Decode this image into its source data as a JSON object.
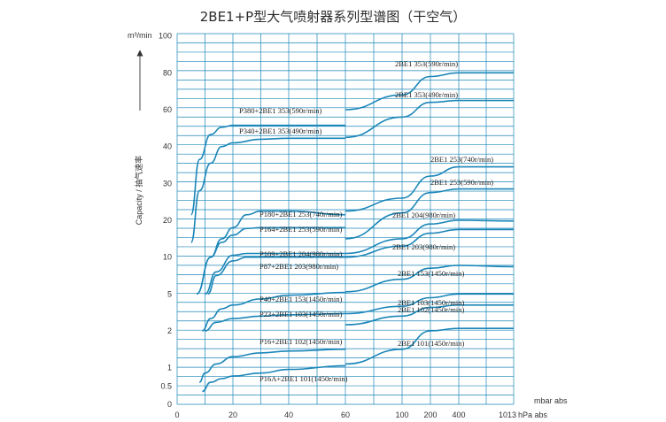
{
  "chart_data": {
    "type": "line",
    "title": "2BE1+P型大气喷射器系列型谱图（干空气）",
    "ylabel": "Capacity / 抽气速率",
    "yunit": "m³/min",
    "xunit_top": "mbar abs",
    "xunit_bottom": "hPa abs",
    "x_ticks": [
      "0",
      "20",
      "40",
      "60",
      "100",
      "200",
      "400",
      "1013"
    ],
    "y_ticks": [
      "0",
      "0.5",
      "1",
      "2",
      "5",
      "10",
      "20",
      "30",
      "40",
      "60",
      "80",
      "100"
    ],
    "grid": true,
    "series_color": "#1b86b8",
    "series": [
      {
        "name": "P380+2BE1 353(590r/min)",
        "points": [
          [
            5,
            21.5
          ],
          [
            8,
            36.5
          ],
          [
            12,
            46.5
          ],
          [
            16,
            50.5
          ],
          [
            20,
            51.5
          ],
          [
            30,
            51.5
          ],
          [
            40,
            51.5
          ],
          [
            60,
            51.5
          ]
        ]
      },
      {
        "name": "P340+2BE1 353(490r/min)",
        "points": [
          [
            5,
            14
          ],
          [
            8,
            28
          ],
          [
            12,
            35.5
          ],
          [
            16,
            40
          ],
          [
            20,
            42
          ],
          [
            30,
            44
          ],
          [
            40,
            44.5
          ],
          [
            60,
            44.5
          ]
        ]
      },
      {
        "name": "2BE1 353(590r/min)",
        "points": [
          [
            60,
            60
          ],
          [
            100,
            68
          ],
          [
            200,
            78
          ],
          [
            400,
            80
          ],
          [
            1013,
            80
          ]
        ]
      },
      {
        "name": "2BE1 353(490r/min)",
        "points": [
          [
            60,
            45
          ],
          [
            100,
            56
          ],
          [
            200,
            64
          ],
          [
            400,
            65
          ],
          [
            1013,
            65
          ]
        ]
      },
      {
        "name": "P180+2BE1 253(740r/min)",
        "points": [
          [
            7,
            5
          ],
          [
            12,
            10
          ],
          [
            16,
            15
          ],
          [
            20,
            18
          ],
          [
            25,
            21.5
          ],
          [
            30,
            22.5
          ],
          [
            40,
            22.5
          ],
          [
            60,
            21.5
          ]
        ]
      },
      {
        "name": "P164+2BE1 253(590r/min)",
        "points": [
          [
            7,
            5
          ],
          [
            12,
            10
          ],
          [
            16,
            14
          ],
          [
            20,
            16
          ],
          [
            25,
            17.8
          ],
          [
            30,
            18
          ],
          [
            40,
            18
          ],
          [
            60,
            18
          ]
        ]
      },
      {
        "name": "2BE1 253(740r/min)",
        "points": [
          [
            60,
            22.5
          ],
          [
            100,
            26
          ],
          [
            200,
            32
          ],
          [
            400,
            34.5
          ],
          [
            1013,
            34.5
          ]
        ]
      },
      {
        "name": "2BE1 253(590r/min)",
        "points": [
          [
            60,
            15
          ],
          [
            100,
            22
          ],
          [
            200,
            27.5
          ],
          [
            400,
            28.5
          ],
          [
            1013,
            28.5
          ]
        ]
      },
      {
        "name": "P109+2BE1 204(980r/min)",
        "points": [
          [
            10,
            5
          ],
          [
            14,
            8
          ],
          [
            20,
            10.5
          ],
          [
            25,
            11
          ],
          [
            40,
            11
          ],
          [
            60,
            11
          ]
        ]
      },
      {
        "name": "P87+2BE1 203(980r/min)",
        "points": [
          [
            11,
            5
          ],
          [
            14,
            7.5
          ],
          [
            20,
            9.5
          ],
          [
            25,
            10
          ],
          [
            40,
            10
          ],
          [
            60,
            10
          ]
        ]
      },
      {
        "name": "2BE1 204(980r/min)",
        "points": [
          [
            60,
            11
          ],
          [
            100,
            15
          ],
          [
            200,
            19
          ],
          [
            400,
            20
          ],
          [
            1013,
            19.8
          ]
        ]
      },
      {
        "name": "2BE1 203(980r/min)",
        "points": [
          [
            60,
            10
          ],
          [
            100,
            13
          ],
          [
            200,
            16.5
          ],
          [
            400,
            17.5
          ],
          [
            1013,
            17.5
          ]
        ]
      },
      {
        "name": "2BE1 153(1450r/min)",
        "points": [
          [
            60,
            5.3
          ],
          [
            100,
            7
          ],
          [
            200,
            8.5
          ],
          [
            400,
            8.9
          ],
          [
            1013,
            8.7
          ]
        ]
      },
      {
        "name": "P40+2BE1 153(1450r/min)",
        "points": [
          [
            9,
            2
          ],
          [
            12,
            3
          ],
          [
            16,
            3.8
          ],
          [
            20,
            4.1
          ],
          [
            30,
            4.6
          ],
          [
            40,
            4.9
          ],
          [
            60,
            5.2
          ]
        ]
      },
      {
        "name": "P23+2BE1 103(1450r/min)",
        "points": [
          [
            10,
            2
          ],
          [
            14,
            2.7
          ],
          [
            20,
            3
          ],
          [
            30,
            3.2
          ],
          [
            40,
            3.3
          ],
          [
            60,
            3.4
          ]
        ]
      },
      {
        "name": "2BE1 103(1450r/min)",
        "points": [
          [
            60,
            3.4
          ],
          [
            100,
            4
          ],
          [
            200,
            4.7
          ],
          [
            400,
            5
          ],
          [
            1013,
            5
          ]
        ]
      },
      {
        "name": "2BE1 102(1450r/min)",
        "points": [
          [
            60,
            2.5
          ],
          [
            100,
            3.2
          ],
          [
            200,
            3.9
          ],
          [
            400,
            4.1
          ],
          [
            1013,
            4.1
          ]
        ]
      },
      {
        "name": "P16+2BE1 102(1450r/min)",
        "points": [
          [
            8,
            0.6
          ],
          [
            10,
            0.85
          ],
          [
            14,
            1.1
          ],
          [
            20,
            1.3
          ],
          [
            30,
            1.4
          ],
          [
            40,
            1.45
          ],
          [
            60,
            1.5
          ]
        ]
      },
      {
        "name": "2BE1 101(1450r/min)",
        "points": [
          [
            60,
            1.1
          ],
          [
            100,
            1.5
          ],
          [
            200,
            2
          ],
          [
            400,
            2.2
          ],
          [
            1013,
            2.2
          ]
        ]
      },
      {
        "name": "P16A+2BE1 101(1450r/min)",
        "points": [
          [
            9,
            0.35
          ],
          [
            12,
            0.6
          ],
          [
            16,
            0.7
          ],
          [
            20,
            0.77
          ],
          [
            30,
            0.85
          ],
          [
            40,
            0.95
          ],
          [
            60,
            1.05
          ]
        ]
      }
    ]
  }
}
